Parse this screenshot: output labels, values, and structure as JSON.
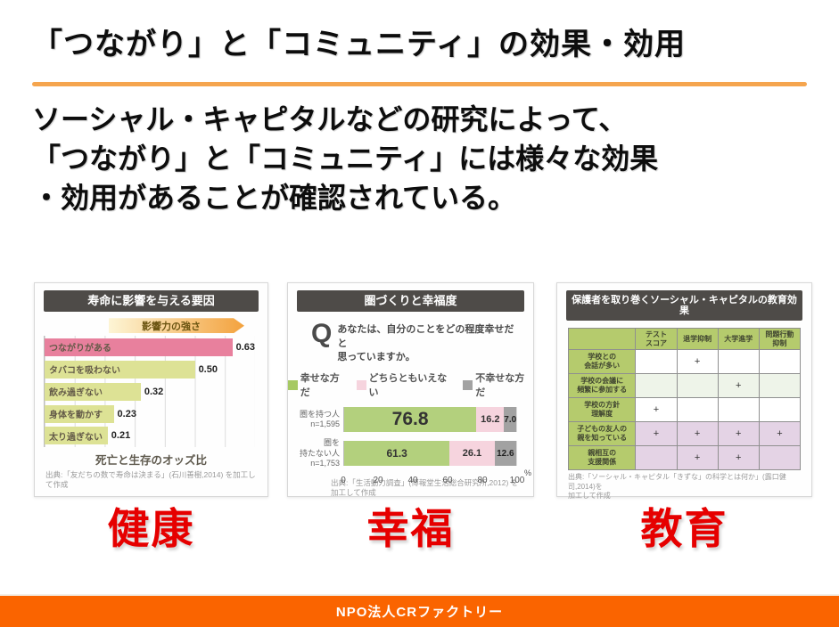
{
  "slide": {
    "title": "「つながり」と「コミュニティ」の効果・効用",
    "body_lines": [
      "ソーシャル・キャピタルなどの研究によって、",
      "「つながり」と「コミュニティ」には様々な効果",
      "・効用があることが確認されている。"
    ],
    "footer_text": "NPO法人CRファクトリー"
  },
  "section_labels": {
    "health": "健康",
    "happiness": "幸福",
    "education": "教育"
  },
  "colors": {
    "accent_orange": "#f5a54e",
    "footer_orange": "#fa6400",
    "section_red": "#e60000",
    "card_header_gray": "#4e4b48",
    "bar_pink": "#e8809d",
    "bar_yellow_green": "#dde295",
    "happy_green": "#b3d07d",
    "neutral_pink": "#f6d4de",
    "unhappy_gray": "#a2a2a2",
    "table_green": "#b5cb6d",
    "table_light_green": "#eef4e9",
    "table_light_purple": "#e4d3e5"
  },
  "chart_data": [
    {
      "type": "bar",
      "title": "寿命に影響を与える要因",
      "arrow_label": "影響力の強さ",
      "categories": [
        "つながりがある",
        "タバコを吸わない",
        "飲み過ぎない",
        "身体を動かす",
        "太り過ぎない"
      ],
      "values": [
        0.63,
        0.5,
        0.32,
        0.23,
        0.21
      ],
      "value_labels": [
        "0.63",
        "0.50",
        "0.32",
        "0.23",
        "0.21"
      ],
      "xlabel": "死亡と生存のオッズ比",
      "xlim": [
        0,
        0.7
      ],
      "grid": true,
      "source": "出典:「友だちの数で寿命は決まる」(石川善樹,2014) を加工して作成"
    },
    {
      "type": "bar",
      "subtype": "stacked-horizontal",
      "title": "圏づくりと幸福度",
      "question_mark": "Q",
      "question": "あなたは、自分のことをどの程度幸せだと\n思っていますか。",
      "legend": [
        {
          "label": "幸せな方だ",
          "color": "#a6c963"
        },
        {
          "label": "どちらともいえない",
          "color": "#f6d4de"
        },
        {
          "label": "不幸せな方だ",
          "color": "#a2a2a2"
        }
      ],
      "categories": [
        "圏を持つ人\nn=1,595",
        "圏を\n持たない人\nn=1,753"
      ],
      "series": [
        {
          "name": "幸せな方だ",
          "color": "#b3d07d",
          "values": [
            76.8,
            61.3
          ],
          "labels": [
            "76.8",
            "61.3"
          ]
        },
        {
          "name": "どちらともいえない",
          "color": "#f6d4de",
          "values": [
            16.2,
            26.1
          ],
          "labels": [
            "16.2",
            "26.1"
          ]
        },
        {
          "name": "不幸せな方だ",
          "color": "#a2a2a2",
          "values": [
            7.0,
            12.6
          ],
          "labels": [
            "7.0",
            "12.6"
          ]
        }
      ],
      "x_ticks": [
        "0",
        "20",
        "40",
        "60",
        "80",
        "100"
      ],
      "x_unit": "%",
      "xlim": [
        0,
        100
      ],
      "grid": true,
      "source": "出典:「生活動力調査」(博報堂生活総合研究所,2012) を\n加工して作成"
    },
    {
      "type": "table",
      "title": "保護者を取り巻くソーシャル・キャピタルの教育効果",
      "columns": [
        "テスト\nスコア",
        "退学抑制",
        "大学進学",
        "問題行動\n抑制"
      ],
      "rows": [
        {
          "label": "学校との\n会話が多い",
          "cells": [
            "",
            "+",
            "",
            ""
          ]
        },
        {
          "label": "学校の会議に\n頻繁に参加する",
          "cells": [
            "",
            "",
            "+",
            ""
          ]
        },
        {
          "label": "学校の方針\n理解度",
          "cells": [
            "+",
            "",
            "",
            ""
          ]
        },
        {
          "label": "子どもの友人の\n親を知っている",
          "cells": [
            "+",
            "+",
            "+",
            "+"
          ]
        },
        {
          "label": "親相互の\n支援関係",
          "cells": [
            "",
            "+",
            "+",
            ""
          ]
        }
      ],
      "source": "出典:「ソーシャル・キャピタル「きずな」の科学とは何か」(露口健司,2014)を\n加工して作成"
    }
  ]
}
